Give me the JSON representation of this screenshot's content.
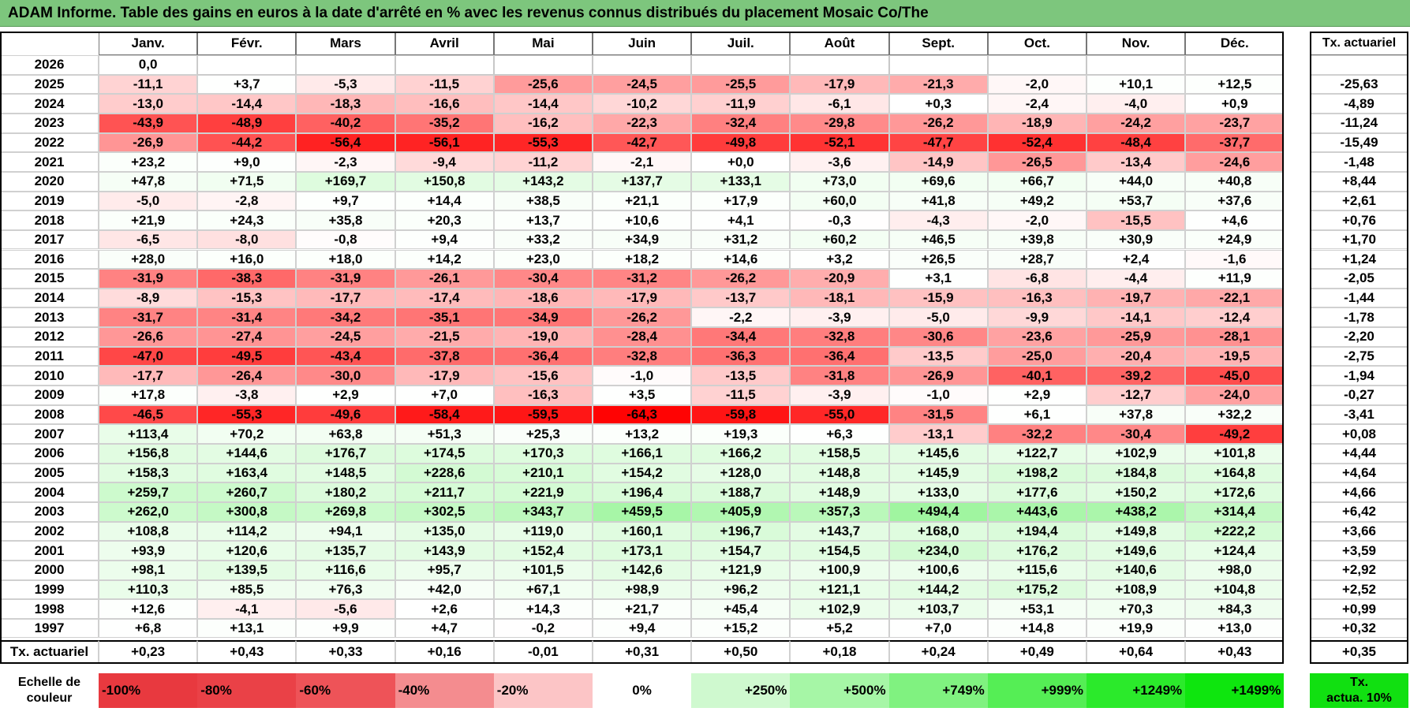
{
  "title": "ADAM Informe. Table des gains en euros à la date d'arrêté en % avec les revenus connus distribués du placement Mosaic Co/The",
  "months": [
    "Janv.",
    "Févr.",
    "Mars",
    "Avril",
    "Mai",
    "Juin",
    "Juil.",
    "Août",
    "Sept.",
    "Oct.",
    "Nov.",
    "Déc."
  ],
  "ta_header": "Tx. actuariel",
  "rows": [
    {
      "year": "2026",
      "values": [
        "0,0",
        "",
        "",
        "",
        "",
        "",
        "",
        "",
        "",
        "",
        "",
        ""
      ],
      "nums": [
        0,
        null,
        null,
        null,
        null,
        null,
        null,
        null,
        null,
        null,
        null,
        null
      ],
      "ta": ""
    },
    {
      "year": "2025",
      "values": [
        "-11,1",
        "+3,7",
        "-5,3",
        "-11,5",
        "-25,6",
        "-24,5",
        "-25,5",
        "-17,9",
        "-21,3",
        "-2,0",
        "+10,1",
        "+12,5"
      ],
      "nums": [
        -11.1,
        3.7,
        -5.3,
        -11.5,
        -25.6,
        -24.5,
        -25.5,
        -17.9,
        -21.3,
        -2.0,
        10.1,
        12.5
      ],
      "ta": "-25,63"
    },
    {
      "year": "2024",
      "values": [
        "-13,0",
        "-14,4",
        "-18,3",
        "-16,6",
        "-14,4",
        "-10,2",
        "-11,9",
        "-6,1",
        "+0,3",
        "-2,4",
        "-4,0",
        "+0,9"
      ],
      "nums": [
        -13.0,
        -14.4,
        -18.3,
        -16.6,
        -14.4,
        -10.2,
        -11.9,
        -6.1,
        0.3,
        -2.4,
        -4.0,
        0.9
      ],
      "ta": "-4,89"
    },
    {
      "year": "2023",
      "values": [
        "-43,9",
        "-48,9",
        "-40,2",
        "-35,2",
        "-16,2",
        "-22,3",
        "-32,4",
        "-29,8",
        "-26,2",
        "-18,9",
        "-24,2",
        "-23,7"
      ],
      "nums": [
        -43.9,
        -48.9,
        -40.2,
        -35.2,
        -16.2,
        -22.3,
        -32.4,
        -29.8,
        -26.2,
        -18.9,
        -24.2,
        -23.7
      ],
      "ta": "-11,24"
    },
    {
      "year": "2022",
      "values": [
        "-26,9",
        "-44,2",
        "-56,4",
        "-56,1",
        "-55,3",
        "-42,7",
        "-49,8",
        "-52,1",
        "-47,7",
        "-52,4",
        "-48,4",
        "-37,7"
      ],
      "nums": [
        -26.9,
        -44.2,
        -56.4,
        -56.1,
        -55.3,
        -42.7,
        -49.8,
        -52.1,
        -47.7,
        -52.4,
        -48.4,
        -37.7
      ],
      "ta": "-15,49"
    },
    {
      "year": "2021",
      "values": [
        "+23,2",
        "+9,0",
        "-2,3",
        "-9,4",
        "-11,2",
        "-2,1",
        "+0,0",
        "-3,6",
        "-14,9",
        "-26,5",
        "-13,4",
        "-24,6"
      ],
      "nums": [
        23.2,
        9.0,
        -2.3,
        -9.4,
        -11.2,
        -2.1,
        0.0,
        -3.6,
        -14.9,
        -26.5,
        -13.4,
        -24.6
      ],
      "ta": "-1,48"
    },
    {
      "year": "2020",
      "values": [
        "+47,8",
        "+71,5",
        "+169,7",
        "+150,8",
        "+143,2",
        "+137,7",
        "+133,1",
        "+73,0",
        "+69,6",
        "+66,7",
        "+44,0",
        "+40,8"
      ],
      "nums": [
        47.8,
        71.5,
        169.7,
        150.8,
        143.2,
        137.7,
        133.1,
        73.0,
        69.6,
        66.7,
        44.0,
        40.8
      ],
      "ta": "+8,44"
    },
    {
      "year": "2019",
      "values": [
        "-5,0",
        "-2,8",
        "+9,7",
        "+14,4",
        "+38,5",
        "+21,1",
        "+17,9",
        "+60,0",
        "+41,8",
        "+49,2",
        "+53,7",
        "+37,6"
      ],
      "nums": [
        -5.0,
        -2.8,
        9.7,
        14.4,
        38.5,
        21.1,
        17.9,
        60.0,
        41.8,
        49.2,
        53.7,
        37.6
      ],
      "ta": "+2,61"
    },
    {
      "year": "2018",
      "values": [
        "+21,9",
        "+24,3",
        "+35,8",
        "+20,3",
        "+13,7",
        "+10,6",
        "+4,1",
        "-0,3",
        "-4,3",
        "-2,0",
        "-15,5",
        "+4,6"
      ],
      "nums": [
        21.9,
        24.3,
        35.8,
        20.3,
        13.7,
        10.6,
        4.1,
        -0.3,
        -4.3,
        -2.0,
        -15.5,
        4.6
      ],
      "ta": "+0,76"
    },
    {
      "year": "2017",
      "values": [
        "-6,5",
        "-8,0",
        "-0,8",
        "+9,4",
        "+33,2",
        "+34,9",
        "+31,2",
        "+60,2",
        "+46,5",
        "+39,8",
        "+30,9",
        "+24,9"
      ],
      "nums": [
        -6.5,
        -8.0,
        -0.8,
        9.4,
        33.2,
        34.9,
        31.2,
        60.2,
        46.5,
        39.8,
        30.9,
        24.9
      ],
      "ta": "+1,70"
    },
    {
      "year": "2016",
      "values": [
        "+28,0",
        "+16,0",
        "+18,0",
        "+14,2",
        "+23,0",
        "+18,2",
        "+14,6",
        "+3,2",
        "+26,5",
        "+28,7",
        "+2,4",
        "-1,6"
      ],
      "nums": [
        28.0,
        16.0,
        18.0,
        14.2,
        23.0,
        18.2,
        14.6,
        3.2,
        26.5,
        28.7,
        2.4,
        -1.6
      ],
      "ta": "+1,24"
    },
    {
      "year": "2015",
      "values": [
        "-31,9",
        "-38,3",
        "-31,9",
        "-26,1",
        "-30,4",
        "-31,2",
        "-26,2",
        "-20,9",
        "+3,1",
        "-6,8",
        "-4,4",
        "+11,9"
      ],
      "nums": [
        -31.9,
        -38.3,
        -31.9,
        -26.1,
        -30.4,
        -31.2,
        -26.2,
        -20.9,
        3.1,
        -6.8,
        -4.4,
        11.9
      ],
      "ta": "-2,05"
    },
    {
      "year": "2014",
      "values": [
        "-8,9",
        "-15,3",
        "-17,7",
        "-17,4",
        "-18,6",
        "-17,9",
        "-13,7",
        "-18,1",
        "-15,9",
        "-16,3",
        "-19,7",
        "-22,1"
      ],
      "nums": [
        -8.9,
        -15.3,
        -17.7,
        -17.4,
        -18.6,
        -17.9,
        -13.7,
        -18.1,
        -15.9,
        -16.3,
        -19.7,
        -22.1
      ],
      "ta": "-1,44"
    },
    {
      "year": "2013",
      "values": [
        "-31,7",
        "-31,4",
        "-34,2",
        "-35,1",
        "-34,9",
        "-26,2",
        "-2,2",
        "-3,9",
        "-5,0",
        "-9,9",
        "-14,1",
        "-12,4"
      ],
      "nums": [
        -31.7,
        -31.4,
        -34.2,
        -35.1,
        -34.9,
        -26.2,
        -2.2,
        -3.9,
        -5.0,
        -9.9,
        -14.1,
        -12.4
      ],
      "ta": "-1,78"
    },
    {
      "year": "2012",
      "values": [
        "-26,6",
        "-27,4",
        "-24,5",
        "-21,5",
        "-19,0",
        "-28,4",
        "-34,4",
        "-32,8",
        "-30,6",
        "-23,6",
        "-25,9",
        "-28,1"
      ],
      "nums": [
        -26.6,
        -27.4,
        -24.5,
        -21.5,
        -19.0,
        -28.4,
        -34.4,
        -32.8,
        -30.6,
        -23.6,
        -25.9,
        -28.1
      ],
      "ta": "-2,20"
    },
    {
      "year": "2011",
      "values": [
        "-47,0",
        "-49,5",
        "-43,4",
        "-37,8",
        "-36,4",
        "-32,8",
        "-36,3",
        "-36,4",
        "-13,5",
        "-25,0",
        "-20,4",
        "-19,5"
      ],
      "nums": [
        -47.0,
        -49.5,
        -43.4,
        -37.8,
        -36.4,
        -32.8,
        -36.3,
        -36.4,
        -13.5,
        -25.0,
        -20.4,
        -19.5
      ],
      "ta": "-2,75"
    },
    {
      "year": "2010",
      "values": [
        "-17,7",
        "-26,4",
        "-30,0",
        "-17,9",
        "-15,6",
        "-1,0",
        "-13,5",
        "-31,8",
        "-26,9",
        "-40,1",
        "-39,2",
        "-45,0"
      ],
      "nums": [
        -17.7,
        -26.4,
        -30.0,
        -17.9,
        -15.6,
        -1.0,
        -13.5,
        -31.8,
        -26.9,
        -40.1,
        -39.2,
        -45.0
      ],
      "ta": "-1,94"
    },
    {
      "year": "2009",
      "values": [
        "+17,8",
        "-3,8",
        "+2,9",
        "+7,0",
        "-16,3",
        "+3,5",
        "-11,5",
        "-3,9",
        "-1,0",
        "+2,9",
        "-12,7",
        "-24,0"
      ],
      "nums": [
        17.8,
        -3.8,
        2.9,
        7.0,
        -16.3,
        3.5,
        -11.5,
        -3.9,
        -1.0,
        2.9,
        -12.7,
        -24.0
      ],
      "ta": "-0,27"
    },
    {
      "year": "2008",
      "values": [
        "-46,5",
        "-55,3",
        "-49,6",
        "-58,4",
        "-59,5",
        "-64,3",
        "-59,8",
        "-55,0",
        "-31,5",
        "+6,1",
        "+37,8",
        "+32,2"
      ],
      "nums": [
        -46.5,
        -55.3,
        -49.6,
        -58.4,
        -59.5,
        -64.3,
        -59.8,
        -55.0,
        -31.5,
        6.1,
        37.8,
        32.2
      ],
      "ta": "-3,41"
    },
    {
      "year": "2007",
      "values": [
        "+113,4",
        "+70,2",
        "+63,8",
        "+51,3",
        "+25,3",
        "+13,2",
        "+19,3",
        "+6,3",
        "-13,1",
        "-32,2",
        "-30,4",
        "-49,2"
      ],
      "nums": [
        113.4,
        70.2,
        63.8,
        51.3,
        25.3,
        13.2,
        19.3,
        6.3,
        -13.1,
        -32.2,
        -30.4,
        -49.2
      ],
      "ta": "+0,08"
    },
    {
      "year": "2006",
      "values": [
        "+156,8",
        "+144,6",
        "+176,7",
        "+174,5",
        "+170,3",
        "+166,1",
        "+166,2",
        "+158,5",
        "+145,6",
        "+122,7",
        "+102,9",
        "+101,8"
      ],
      "nums": [
        156.8,
        144.6,
        176.7,
        174.5,
        170.3,
        166.1,
        166.2,
        158.5,
        145.6,
        122.7,
        102.9,
        101.8
      ],
      "ta": "+4,44"
    },
    {
      "year": "2005",
      "values": [
        "+158,3",
        "+163,4",
        "+148,5",
        "+228,6",
        "+210,1",
        "+154,2",
        "+128,0",
        "+148,8",
        "+145,9",
        "+198,2",
        "+184,8",
        "+164,8"
      ],
      "nums": [
        158.3,
        163.4,
        148.5,
        228.6,
        210.1,
        154.2,
        128.0,
        148.8,
        145.9,
        198.2,
        184.8,
        164.8
      ],
      "ta": "+4,64"
    },
    {
      "year": "2004",
      "values": [
        "+259,7",
        "+260,7",
        "+180,2",
        "+211,7",
        "+221,9",
        "+196,4",
        "+188,7",
        "+148,9",
        "+133,0",
        "+177,6",
        "+150,2",
        "+172,6"
      ],
      "nums": [
        259.7,
        260.7,
        180.2,
        211.7,
        221.9,
        196.4,
        188.7,
        148.9,
        133.0,
        177.6,
        150.2,
        172.6
      ],
      "ta": "+4,66"
    },
    {
      "year": "2003",
      "values": [
        "+262,0",
        "+300,8",
        "+269,8",
        "+302,5",
        "+343,7",
        "+459,5",
        "+405,9",
        "+357,3",
        "+494,4",
        "+443,6",
        "+438,2",
        "+314,4"
      ],
      "nums": [
        262.0,
        300.8,
        269.8,
        302.5,
        343.7,
        459.5,
        405.9,
        357.3,
        494.4,
        443.6,
        438.2,
        314.4
      ],
      "ta": "+6,42"
    },
    {
      "year": "2002",
      "values": [
        "+108,8",
        "+114,2",
        "+94,1",
        "+135,0",
        "+119,0",
        "+160,1",
        "+196,7",
        "+143,7",
        "+168,0",
        "+194,4",
        "+149,8",
        "+222,2"
      ],
      "nums": [
        108.8,
        114.2,
        94.1,
        135.0,
        119.0,
        160.1,
        196.7,
        143.7,
        168.0,
        194.4,
        149.8,
        222.2
      ],
      "ta": "+3,66"
    },
    {
      "year": "2001",
      "values": [
        "+93,9",
        "+120,6",
        "+135,7",
        "+143,9",
        "+152,4",
        "+173,1",
        "+154,7",
        "+154,5",
        "+234,0",
        "+176,2",
        "+149,6",
        "+124,4"
      ],
      "nums": [
        93.9,
        120.6,
        135.7,
        143.9,
        152.4,
        173.1,
        154.7,
        154.5,
        234.0,
        176.2,
        149.6,
        124.4
      ],
      "ta": "+3,59"
    },
    {
      "year": "2000",
      "values": [
        "+98,1",
        "+139,5",
        "+116,6",
        "+95,7",
        "+101,5",
        "+142,6",
        "+121,9",
        "+100,9",
        "+100,6",
        "+115,6",
        "+140,6",
        "+98,0"
      ],
      "nums": [
        98.1,
        139.5,
        116.6,
        95.7,
        101.5,
        142.6,
        121.9,
        100.9,
        100.6,
        115.6,
        140.6,
        98.0
      ],
      "ta": "+2,92"
    },
    {
      "year": "1999",
      "values": [
        "+110,3",
        "+85,5",
        "+76,3",
        "+42,0",
        "+67,1",
        "+98,9",
        "+96,2",
        "+121,1",
        "+144,2",
        "+175,2",
        "+108,9",
        "+104,8"
      ],
      "nums": [
        110.3,
        85.5,
        76.3,
        42.0,
        67.1,
        98.9,
        96.2,
        121.1,
        144.2,
        175.2,
        108.9,
        104.8
      ],
      "ta": "+2,52"
    },
    {
      "year": "1998",
      "values": [
        "+12,6",
        "-4,1",
        "-5,6",
        "+2,6",
        "+14,3",
        "+21,7",
        "+45,4",
        "+102,9",
        "+103,7",
        "+53,1",
        "+70,3",
        "+84,3"
      ],
      "nums": [
        12.6,
        -4.1,
        -5.6,
        2.6,
        14.3,
        21.7,
        45.4,
        102.9,
        103.7,
        53.1,
        70.3,
        84.3
      ],
      "ta": "+0,99"
    },
    {
      "year": "1997",
      "values": [
        "+6,8",
        "+13,1",
        "+9,9",
        "+4,7",
        "-0,2",
        "+9,4",
        "+15,2",
        "+5,2",
        "+7,0",
        "+14,8",
        "+19,9",
        "+13,0"
      ],
      "nums": [
        6.8,
        13.1,
        9.9,
        4.7,
        -0.2,
        9.4,
        15.2,
        5.2,
        7.0,
        14.8,
        19.9,
        13.0
      ],
      "ta": "+0,32"
    }
  ],
  "ta_row": {
    "label": "Tx. actuariel",
    "values": [
      "+0,23",
      "+0,43",
      "+0,33",
      "+0,16",
      "-0,01",
      "+0,31",
      "+0,50",
      "+0,18",
      "+0,24",
      "+0,49",
      "+0,64",
      "+0,43"
    ],
    "total": "+0,35"
  },
  "legend": {
    "label_line1": "Echelle de",
    "label_line2": "couleur",
    "items": [
      {
        "label": "-100%",
        "color": "#e8393f",
        "align": "left"
      },
      {
        "label": "-80%",
        "color": "#ea4147",
        "align": "left"
      },
      {
        "label": "-60%",
        "color": "#ee5358",
        "align": "left"
      },
      {
        "label": "-40%",
        "color": "#f48c8f",
        "align": "left"
      },
      {
        "label": "-20%",
        "color": "#fcc5c6",
        "align": "left"
      },
      {
        "label": "0%",
        "color": "#ffffff",
        "align": "center"
      },
      {
        "label": "+250%",
        "color": "#cff9cf",
        "align": "right"
      },
      {
        "label": "+500%",
        "color": "#a6f6a6",
        "align": "right"
      },
      {
        "label": "+749%",
        "color": "#80f280",
        "align": "right"
      },
      {
        "label": "+999%",
        "color": "#55ee55",
        "align": "right"
      },
      {
        "label": "+1249%",
        "color": "#2bea2b",
        "align": "right"
      },
      {
        "label": "+1499%",
        "color": "#0ee60e",
        "align": "right"
      }
    ],
    "ta_label_line1": "Tx.",
    "ta_label_line2": "actua. 10%",
    "ta_color": "#11e011"
  },
  "colors": {
    "title_bg": "#7dc67d",
    "neg_strong": "#ff0000",
    "neg_light": "#ffffff",
    "pos_light": "#ffffff",
    "pos_strong": "#9ff59f"
  }
}
